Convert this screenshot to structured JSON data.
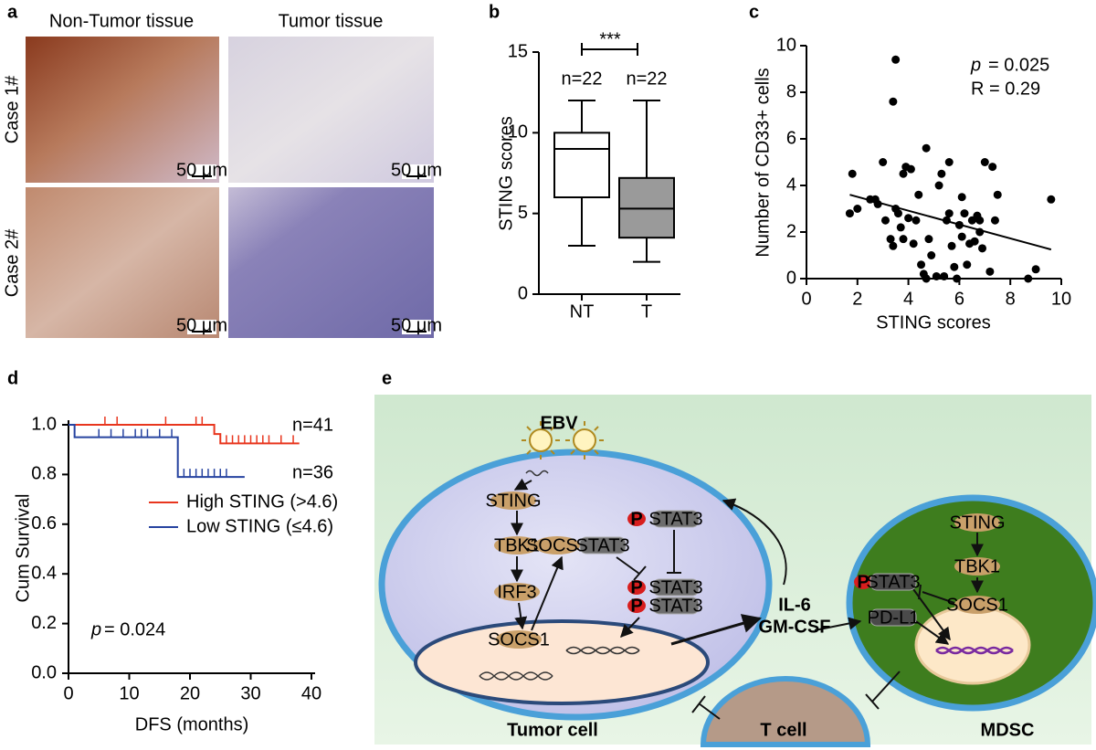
{
  "panel_labels": [
    "a",
    "b",
    "c",
    "d",
    "e"
  ],
  "panel_a": {
    "columns": [
      "Non-Tumor tissue",
      "Tumor tissue"
    ],
    "rows": [
      "Case 1#",
      "Case 2#"
    ],
    "scale_bar": "50 μm"
  },
  "chart_data": [
    {
      "type": "box",
      "ylabel": "STING scores",
      "categories": [
        "NT",
        "T"
      ],
      "boxes": [
        {
          "min": 3,
          "q1": 6,
          "median": 9,
          "q3": 10,
          "max": 12,
          "color": "#ffffff"
        },
        {
          "min": 2,
          "q1": 3.5,
          "median": 5.3,
          "q3": 7.2,
          "max": 12,
          "color": "#9a9a9a"
        }
      ],
      "annotations": [
        "n=22",
        "n=22"
      ],
      "significance": "***",
      "ylim": [
        0,
        15
      ],
      "yticks": [
        0,
        5,
        10,
        15
      ]
    },
    {
      "type": "scatter",
      "xlabel": "STING scores",
      "ylabel": "Number of CD33+ cells",
      "color": "#000000",
      "x": [
        1.7,
        1.8,
        2.0,
        2.5,
        2.7,
        2.8,
        3.0,
        3.1,
        3.3,
        3.4,
        3.5,
        3.4,
        3.5,
        3.6,
        3.7,
        3.8,
        3.8,
        3.9,
        4.0,
        4.1,
        4.2,
        4.3,
        4.4,
        4.5,
        4.6,
        4.7,
        4.7,
        4.8,
        4.9,
        5.1,
        5.2,
        5.3,
        5.5,
        5.6,
        5.6,
        5.7,
        5.8,
        5.9,
        6.0,
        6.1,
        6.1,
        6.2,
        6.3,
        6.4,
        6.5,
        6.6,
        6.7,
        6.8,
        6.9,
        7.0,
        7.2,
        7.3,
        7.5,
        7.4,
        8.7,
        9.0,
        9.6,
        6.8,
        5.4
      ],
      "values": [
        2.8,
        4.5,
        3.0,
        3.4,
        3.4,
        3.2,
        5.0,
        2.5,
        1.7,
        1.4,
        9.4,
        7.6,
        3.0,
        2.8,
        2.2,
        4.5,
        1.7,
        4.8,
        2.6,
        4.7,
        1.5,
        2.5,
        3.6,
        0.6,
        0.2,
        5.6,
        0.0,
        1.7,
        1.0,
        0.1,
        4.0,
        4.5,
        2.5,
        2.8,
        5.0,
        1.4,
        0.5,
        0.0,
        2.3,
        1.8,
        3.5,
        2.8,
        0.6,
        1.5,
        2.5,
        1.6,
        2.7,
        2.0,
        1.3,
        5.0,
        0.3,
        4.8,
        3.6,
        2.5,
        0.0,
        0.4,
        3.4,
        2.5,
        0.1
      ],
      "fit_line": {
        "x": [
          1.7,
          9.6
        ],
        "values": [
          3.6,
          1.25
        ]
      },
      "stat_symbol": "p",
      "stat_text": "= 0.025",
      "r_label": "R = 0.29",
      "xlim": [
        0,
        10
      ],
      "xticks": [
        0,
        2,
        4,
        6,
        8,
        10
      ],
      "ylim": [
        0,
        10
      ],
      "yticks": [
        0,
        2,
        4,
        6,
        8,
        10
      ]
    },
    {
      "type": "line",
      "xlabel": "DFS (months)",
      "ylabel": "Cum Survival",
      "step": true,
      "series": [
        {
          "name": "High STING (>4.6)",
          "color": "#e8361e",
          "count_label": "n=41",
          "x": [
            0,
            24,
            24,
            25,
            25,
            38
          ],
          "values": [
            1,
            1,
            0.963,
            0.963,
            0.925,
            0.925
          ],
          "censor_x": [
            6,
            8,
            16,
            21,
            22,
            26,
            27,
            28,
            29,
            30,
            31,
            32,
            33,
            35,
            37
          ],
          "censor_values": [
            1,
            1,
            1,
            1,
            1,
            0.925,
            0.925,
            0.925,
            0.925,
            0.925,
            0.925,
            0.925,
            0.925,
            0.925,
            0.925
          ]
        },
        {
          "name": "Low STING (≤4.6)",
          "color": "#2643a0",
          "count_label": "n=36",
          "x": [
            0,
            1,
            1,
            18,
            18,
            29
          ],
          "values": [
            1,
            1,
            0.95,
            0.95,
            0.79,
            0.79
          ],
          "censor_x": [
            5,
            7,
            9,
            11,
            12,
            13,
            15,
            17,
            19,
            20,
            21,
            22,
            23,
            24,
            25,
            26
          ],
          "censor_values": [
            0.95,
            0.95,
            0.95,
            0.95,
            0.95,
            0.95,
            0.95,
            0.95,
            0.79,
            0.79,
            0.79,
            0.79,
            0.79,
            0.79,
            0.79,
            0.79
          ]
        }
      ],
      "stat_symbol": "p",
      "stat_text": "= 0.024",
      "xlim": [
        0,
        40
      ],
      "xticks": [
        0,
        10,
        20,
        30,
        40
      ],
      "ylim": [
        0,
        1.0
      ],
      "yticks": [
        {
          "value": 0,
          "label": "0.0"
        },
        {
          "value": 0.2,
          "label": "0.2"
        },
        {
          "value": 0.4,
          "label": "0.4"
        },
        {
          "value": 0.6,
          "label": "0.6"
        },
        {
          "value": 0.8,
          "label": "0.8"
        },
        {
          "value": 1.0,
          "label": "1.0"
        }
      ]
    }
  ],
  "panel_e": {
    "virus": "EBV",
    "cytokines": [
      "IL-6",
      "GM-CSF"
    ],
    "cells": [
      "Tumor cell",
      "T cell",
      "MDSC"
    ],
    "nodes": [
      {
        "label": "STING",
        "color": "#c9a06a"
      },
      {
        "label": "TBK1",
        "color": "#c9a06a"
      },
      {
        "label": "IRF3",
        "color": "#c9a06a"
      },
      {
        "label": "SOCS1",
        "color": "#c9a06a"
      },
      {
        "label": "STAT3",
        "color": "#6d6d6d"
      },
      {
        "label": "P",
        "color": "#d81e1e"
      },
      {
        "label": "STAT3",
        "color": "#6d6d6d"
      },
      {
        "label": "P",
        "color": "#d81e1e"
      },
      {
        "label": "STAT3",
        "color": "#6d6d6d"
      },
      {
        "label": "P",
        "color": "#d81e1e"
      },
      {
        "label": "STAT3",
        "color": "#6d6d6d"
      },
      {
        "label": "SOCS1",
        "color": "#c9a06a"
      },
      {
        "label": "STING",
        "color": "#c9a06a"
      },
      {
        "label": "TBK1",
        "color": "#c9a06a"
      },
      {
        "label": "SOCS1",
        "color": "#c9a06a"
      },
      {
        "label": "P",
        "color": "#d81e1e"
      },
      {
        "label": "STAT3",
        "color": "#4a4a4a"
      },
      {
        "label": "PD-L1",
        "color": "#4a4a4a"
      }
    ]
  }
}
